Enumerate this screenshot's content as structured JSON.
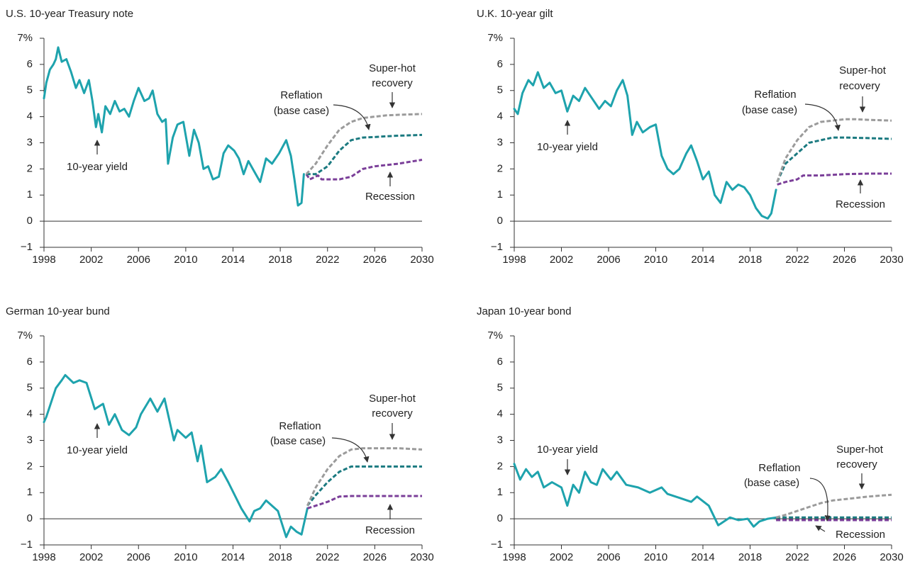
{
  "chart_data": [
    {
      "type": "line",
      "title": "U.S. 10-year Treasury note",
      "xlim": [
        1998,
        2030
      ],
      "xticks": [
        1998,
        2002,
        2006,
        2010,
        2014,
        2018,
        2022,
        2026,
        2030
      ],
      "ylim": [
        -1,
        7
      ],
      "yticks": [
        {
          "value": 7,
          "label": "7%"
        },
        6,
        5,
        4,
        3,
        2,
        1,
        0,
        {
          "value": -1,
          "label": "−1"
        }
      ],
      "series": [
        {
          "name": [
            "10-year yield"
          ],
          "color": "#1ea3ad",
          "dashed": false,
          "x": [
            1998,
            1998.2,
            1998.5,
            1998.8,
            1999.0,
            1999.2,
            1999.5,
            1999.9,
            2000.3,
            2000.7,
            2001.0,
            2001.4,
            2001.8,
            2002.1,
            2002.4,
            2002.6,
            2002.9,
            2003.2,
            2003.6,
            2004.0,
            2004.4,
            2004.8,
            2005.2,
            2005.6,
            2006.0,
            2006.5,
            2006.9,
            2007.2,
            2007.6,
            2008.0,
            2008.3,
            2008.5,
            2008.9,
            2009.3,
            2009.8,
            2010.3,
            2010.7,
            2011.1,
            2011.5,
            2011.9,
            2012.3,
            2012.8,
            2013.2,
            2013.6,
            2014.1,
            2014.5,
            2014.9,
            2015.3,
            2015.8,
            2016.3,
            2016.8,
            2017.3,
            2017.9,
            2018.5,
            2018.9,
            2019.2,
            2019.5,
            2019.8,
            2020.0
          ],
          "values": [
            4.7,
            5.3,
            5.8,
            6.0,
            6.2,
            6.65,
            6.1,
            6.2,
            5.7,
            5.1,
            5.4,
            4.9,
            5.4,
            4.6,
            3.6,
            4.1,
            3.4,
            4.4,
            4.1,
            4.6,
            4.2,
            4.3,
            4.0,
            4.6,
            5.1,
            4.6,
            4.7,
            5.0,
            4.1,
            3.8,
            3.9,
            2.2,
            3.2,
            3.7,
            3.8,
            2.5,
            3.5,
            3.0,
            2.0,
            2.1,
            1.6,
            1.7,
            2.6,
            2.9,
            2.7,
            2.4,
            1.8,
            2.3,
            1.9,
            1.5,
            2.4,
            2.2,
            2.6,
            3.1,
            2.5,
            1.6,
            0.6,
            0.7,
            1.8
          ]
        },
        {
          "name": [
            "Reflation",
            "(base case)"
          ],
          "color": "#1b7a80",
          "dashed": true,
          "x": [
            2020.2,
            2021,
            2022,
            2023,
            2024,
            2025,
            2026,
            2027,
            2028,
            2030
          ],
          "values": [
            1.8,
            1.8,
            2.1,
            2.7,
            3.1,
            3.2,
            3.22,
            3.25,
            3.27,
            3.3
          ]
        },
        {
          "name": [
            "Super-hot",
            "recovery"
          ],
          "color": "#9b9b9b",
          "dashed": true,
          "x": [
            2020.2,
            2021,
            2022,
            2023,
            2024,
            2025,
            2026,
            2027,
            2028,
            2030
          ],
          "values": [
            1.8,
            2.2,
            2.9,
            3.5,
            3.8,
            3.95,
            4.0,
            4.05,
            4.07,
            4.1
          ]
        },
        {
          "name": [
            "Recession"
          ],
          "color": "#7b3f99",
          "dashed": true,
          "x": [
            2020.2,
            2020.5,
            2021.2,
            2021.5,
            2023,
            2024,
            2025,
            2026,
            2028,
            2030
          ],
          "values": [
            1.8,
            1.6,
            1.75,
            1.6,
            1.6,
            1.7,
            2.0,
            2.1,
            2.2,
            2.35
          ]
        }
      ]
    },
    {
      "type": "line",
      "title": "U.K. 10-year gilt",
      "xlim": [
        1998,
        2030
      ],
      "xticks": [
        1998,
        2002,
        2006,
        2010,
        2014,
        2018,
        2022,
        2026,
        2030
      ],
      "ylim": [
        -1,
        7
      ],
      "yticks": [
        {
          "value": 7,
          "label": "7%"
        },
        6,
        5,
        4,
        3,
        2,
        1,
        0,
        {
          "value": -1,
          "label": "−1"
        }
      ],
      "series": [
        {
          "name": [
            "10-year yield"
          ],
          "color": "#1ea3ad",
          "dashed": false,
          "x": [
            1998,
            1998.3,
            1998.7,
            1999.2,
            1999.6,
            2000.0,
            2000.5,
            2001.0,
            2001.5,
            2002.0,
            2002.5,
            2003.0,
            2003.5,
            2004.0,
            2004.6,
            2005.2,
            2005.7,
            2006.2,
            2006.7,
            2007.2,
            2007.6,
            2008.0,
            2008.4,
            2008.9,
            2009.5,
            2010.0,
            2010.5,
            2011.0,
            2011.5,
            2012.0,
            2012.6,
            2013.0,
            2013.5,
            2014.0,
            2014.5,
            2015.0,
            2015.5,
            2016.0,
            2016.5,
            2017.0,
            2017.5,
            2018.0,
            2018.5,
            2019.0,
            2019.5,
            2019.8,
            2020.2
          ],
          "values": [
            4.3,
            4.1,
            4.9,
            5.4,
            5.2,
            5.7,
            5.1,
            5.3,
            4.9,
            5.0,
            4.2,
            4.8,
            4.6,
            5.1,
            4.7,
            4.3,
            4.6,
            4.4,
            5.0,
            5.4,
            4.8,
            3.3,
            3.8,
            3.4,
            3.6,
            3.7,
            2.5,
            2.0,
            1.8,
            2.0,
            2.6,
            2.9,
            2.3,
            1.6,
            1.9,
            1.0,
            0.7,
            1.5,
            1.2,
            1.4,
            1.3,
            1.0,
            0.5,
            0.2,
            0.1,
            0.3,
            1.2
          ]
        },
        {
          "name": [
            "Reflation",
            "(base case)"
          ],
          "color": "#1b7a80",
          "dashed": true,
          "x": [
            2020.3,
            2021,
            2022,
            2023,
            2024,
            2025,
            2026,
            2028,
            2030
          ],
          "values": [
            1.5,
            2.2,
            2.6,
            3.0,
            3.1,
            3.2,
            3.2,
            3.18,
            3.15
          ]
        },
        {
          "name": [
            "Super-hot",
            "recovery"
          ],
          "color": "#9b9b9b",
          "dashed": true,
          "x": [
            2020.3,
            2021,
            2022,
            2023,
            2024,
            2025,
            2026,
            2027,
            2028,
            2030
          ],
          "values": [
            1.5,
            2.4,
            3.1,
            3.6,
            3.8,
            3.85,
            3.9,
            3.9,
            3.88,
            3.85
          ]
        },
        {
          "name": [
            "Recession"
          ],
          "color": "#7b3f99",
          "dashed": true,
          "x": [
            2020.3,
            2021,
            2022,
            2022.5,
            2024,
            2026,
            2028,
            2030
          ],
          "values": [
            1.4,
            1.5,
            1.6,
            1.75,
            1.75,
            1.8,
            1.82,
            1.82
          ]
        }
      ]
    },
    {
      "type": "line",
      "title": "German 10-year bund",
      "xlim": [
        1998,
        2030
      ],
      "xticks": [
        1998,
        2002,
        2006,
        2010,
        2014,
        2018,
        2022,
        2026,
        2030
      ],
      "ylim": [
        -1,
        7
      ],
      "yticks": [
        {
          "value": 7,
          "label": "7%"
        },
        6,
        5,
        4,
        3,
        2,
        1,
        0,
        {
          "value": -1,
          "label": "−1"
        }
      ],
      "series": [
        {
          "name": [
            "10-year yield"
          ],
          "color": "#1ea3ad",
          "dashed": false,
          "x": [
            1998,
            1998.2,
            1999.0,
            1999.5,
            1999.8,
            2000.5,
            2001.0,
            2001.6,
            2002.3,
            2003.0,
            2003.5,
            2004.0,
            2004.6,
            2005.2,
            2005.8,
            2006.2,
            2007.0,
            2007.6,
            2008.2,
            2009.0,
            2009.3,
            2010.0,
            2010.5,
            2011.0,
            2011.3,
            2011.8,
            2012.5,
            2013.0,
            2013.6,
            2014.7,
            2015.4,
            2015.8,
            2016.3,
            2016.8,
            2017.3,
            2017.8,
            2018.5,
            2018.9,
            2019.4,
            2019.8,
            2020.3
          ],
          "values": [
            3.7,
            3.9,
            5.0,
            5.3,
            5.5,
            5.2,
            5.3,
            5.2,
            4.2,
            4.4,
            3.6,
            4.0,
            3.4,
            3.2,
            3.5,
            4.0,
            4.6,
            4.1,
            4.6,
            3.0,
            3.4,
            3.1,
            3.3,
            2.2,
            2.8,
            1.4,
            1.6,
            1.9,
            1.4,
            0.4,
            -0.1,
            0.3,
            0.4,
            0.7,
            0.5,
            0.3,
            -0.7,
            -0.3,
            -0.5,
            -0.6,
            0.4
          ]
        },
        {
          "name": [
            "Reflation",
            "(base case)"
          ],
          "color": "#1b7a80",
          "dashed": true,
          "x": [
            2020.3,
            2021,
            2022,
            2023,
            2024,
            2025,
            2026,
            2028,
            2030
          ],
          "values": [
            0.5,
            0.9,
            1.4,
            1.8,
            2.0,
            2.0,
            2.0,
            2.0,
            2.0
          ]
        },
        {
          "name": [
            "Super-hot",
            "recovery"
          ],
          "color": "#9b9b9b",
          "dashed": true,
          "x": [
            2020.3,
            2021,
            2022,
            2023,
            2024,
            2025,
            2026,
            2028,
            2030
          ],
          "values": [
            0.5,
            1.2,
            1.9,
            2.4,
            2.65,
            2.7,
            2.7,
            2.7,
            2.65
          ]
        },
        {
          "name": [
            "Recession"
          ],
          "color": "#7b3f99",
          "dashed": true,
          "x": [
            2020.3,
            2021,
            2022,
            2023,
            2024,
            2026,
            2028,
            2030
          ],
          "values": [
            0.4,
            0.5,
            0.65,
            0.85,
            0.87,
            0.87,
            0.87,
            0.87
          ]
        }
      ]
    },
    {
      "type": "line",
      "title": "Japan 10-year bond",
      "xlim": [
        1998,
        2030
      ],
      "xticks": [
        1998,
        2002,
        2006,
        2010,
        2014,
        2018,
        2022,
        2026,
        2030
      ],
      "ylim": [
        -1,
        7
      ],
      "yticks": [
        {
          "value": 7,
          "label": "7%"
        },
        6,
        5,
        4,
        3,
        2,
        1,
        0,
        {
          "value": -1,
          "label": "−1"
        }
      ],
      "series": [
        {
          "name": [
            "10-year yield"
          ],
          "color": "#1ea3ad",
          "dashed": false,
          "x": [
            1998,
            1998.5,
            1999.0,
            1999.5,
            2000.0,
            2000.5,
            2001.2,
            2002.0,
            2002.5,
            2003.0,
            2003.5,
            2004.0,
            2004.5,
            2005.0,
            2005.5,
            2006.2,
            2006.7,
            2007.5,
            2008.5,
            2009.5,
            2010.5,
            2011.0,
            2012.0,
            2013.0,
            2013.5,
            2014.5,
            2015.3,
            2015.8,
            2016.3,
            2017.0,
            2017.8,
            2018.3,
            2018.8,
            2019.5,
            2020.2
          ],
          "values": [
            2.1,
            1.5,
            1.9,
            1.6,
            1.8,
            1.2,
            1.4,
            1.2,
            0.5,
            1.3,
            1.0,
            1.8,
            1.4,
            1.3,
            1.9,
            1.5,
            1.8,
            1.3,
            1.2,
            1.0,
            1.2,
            0.95,
            0.8,
            0.65,
            0.85,
            0.5,
            -0.25,
            -0.1,
            0.05,
            -0.05,
            0.0,
            -0.3,
            -0.1,
            0.0,
            0.05
          ]
        },
        {
          "name": [
            "Reflation",
            "(base case)"
          ],
          "color": "#1b7a80",
          "dashed": true,
          "x": [
            2020.2,
            2030
          ],
          "values": [
            0.05,
            0.05
          ]
        },
        {
          "name": [
            "Super-hot",
            "recovery"
          ],
          "color": "#9b9b9b",
          "dashed": true,
          "x": [
            2020.2,
            2021,
            2022,
            2023,
            2024,
            2025,
            2026,
            2028,
            2030
          ],
          "values": [
            0.05,
            0.15,
            0.3,
            0.45,
            0.6,
            0.7,
            0.75,
            0.85,
            0.92
          ]
        },
        {
          "name": [
            "Recession"
          ],
          "color": "#7b3f99",
          "dashed": true,
          "x": [
            2020.2,
            2030
          ],
          "values": [
            -0.05,
            -0.05
          ]
        }
      ]
    }
  ]
}
